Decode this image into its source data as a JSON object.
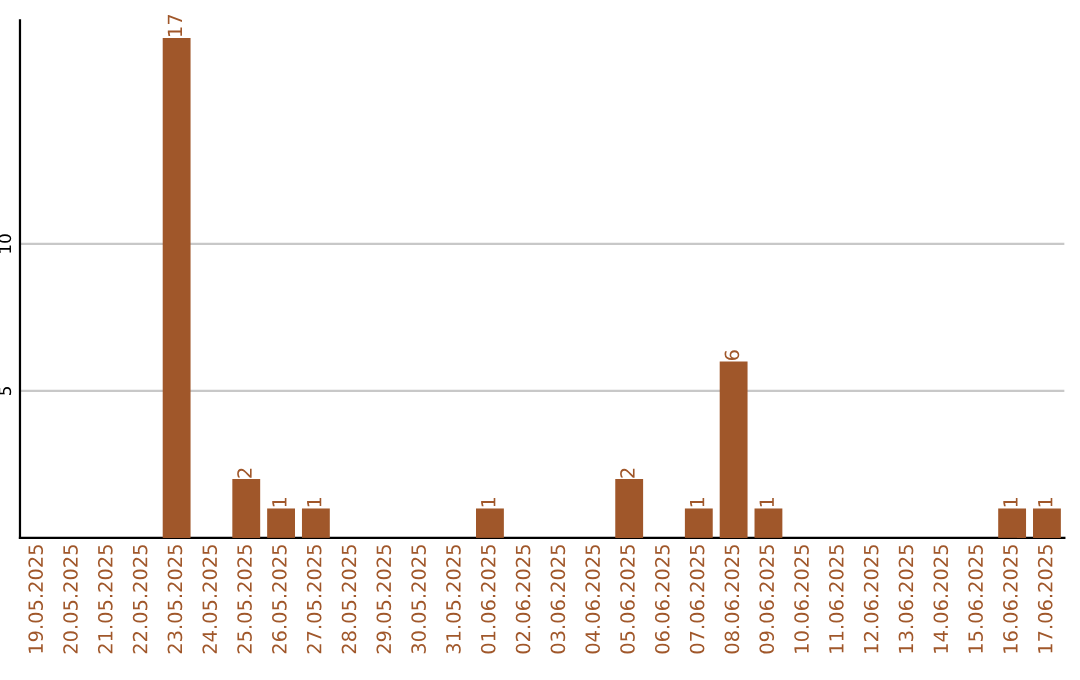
{
  "chart_data": {
    "type": "bar",
    "categories": [
      "19.05.2025",
      "20.05.2025",
      "21.05.2025",
      "22.05.2025",
      "23.05.2025",
      "24.05.2025",
      "25.05.2025",
      "26.05.2025",
      "27.05.2025",
      "28.05.2025",
      "29.05.2025",
      "30.05.2025",
      "31.05.2025",
      "01.06.2025",
      "02.06.2025",
      "03.06.2025",
      "04.06.2025",
      "05.06.2025",
      "06.06.2025",
      "07.06.2025",
      "08.06.2025",
      "09.06.2025",
      "10.06.2025",
      "11.06.2025",
      "12.06.2025",
      "13.06.2025",
      "14.06.2025",
      "15.06.2025",
      "16.06.2025",
      "17.06.2025"
    ],
    "values": [
      0,
      0,
      0,
      0,
      17,
      0,
      2,
      1,
      1,
      0,
      0,
      0,
      0,
      1,
      0,
      0,
      0,
      2,
      0,
      1,
      6,
      1,
      0,
      0,
      0,
      0,
      0,
      0,
      1,
      1
    ],
    "value_labels": [
      null,
      null,
      null,
      null,
      "17",
      null,
      "2",
      "1",
      "1",
      null,
      null,
      null,
      null,
      "1",
      null,
      null,
      null,
      "2",
      null,
      "1",
      "6",
      "1",
      null,
      null,
      null,
      null,
      null,
      null,
      "1",
      "1"
    ],
    "color": "#a0572a",
    "ylim": [
      0,
      17.6
    ],
    "yticks": [
      5,
      10
    ],
    "grid": "y"
  }
}
